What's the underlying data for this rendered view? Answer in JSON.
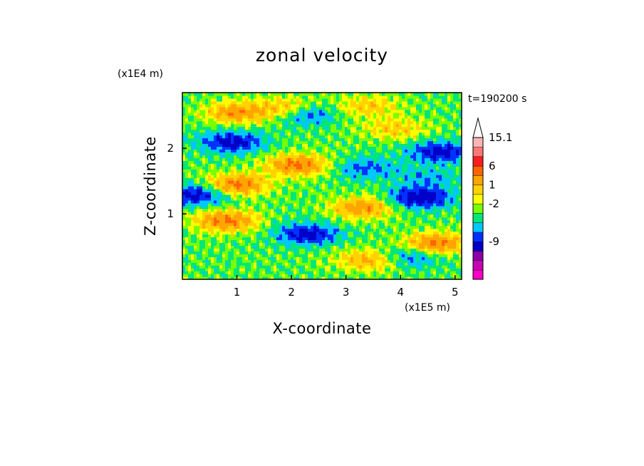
{
  "chart_data": {
    "type": "heatmap",
    "title": "zonal velocity",
    "xlabel": "X-coordinate",
    "ylabel": "Z-coordinate",
    "x_scale_label": "(x1E5 m)",
    "y_scale_label": "(x1E4 m)",
    "time_label": "t=190200 s",
    "xlim": [
      0,
      5.12
    ],
    "ylim": [
      0,
      2.85
    ],
    "x_ticks": [
      {
        "value": 1,
        "label": "1"
      },
      {
        "value": 2,
        "label": "2"
      },
      {
        "value": 3,
        "label": "3"
      },
      {
        "value": 4,
        "label": "4"
      },
      {
        "value": 5,
        "label": "5"
      }
    ],
    "y_ticks": [
      {
        "value": 1,
        "label": "1"
      },
      {
        "value": 2,
        "label": "2"
      }
    ],
    "colorbar": {
      "colors": [
        "#ff00c8",
        "#c800b4",
        "#8c00aa",
        "#0000c8",
        "#0032ff",
        "#00c8ff",
        "#00e678",
        "#78ff00",
        "#ffff00",
        "#ffd200",
        "#ffa500",
        "#ff6400",
        "#ff1e1e",
        "#ff7878",
        "#ffb4b4"
      ],
      "extend_max": true,
      "labels": [
        {
          "level": 4,
          "label": "-9"
        },
        {
          "level": 8,
          "label": "-2"
        },
        {
          "level": 10,
          "label": "1"
        },
        {
          "level": 12,
          "label": "6"
        },
        {
          "level": 15,
          "label": "15.1"
        }
      ]
    },
    "field_features": [
      {
        "x": 0.9,
        "z": 2.1,
        "u": -5
      },
      {
        "x": 1.0,
        "z": 2.55,
        "u": 5
      },
      {
        "x": 2.0,
        "z": 2.6,
        "u": 6
      },
      {
        "x": 2.2,
        "z": 2.55,
        "u": -6
      },
      {
        "x": 3.9,
        "z": 2.3,
        "u": 3
      },
      {
        "x": 3.4,
        "z": 2.65,
        "u": 3
      },
      {
        "x": 2.1,
        "z": 1.75,
        "u": 6
      },
      {
        "x": 1.0,
        "z": 1.45,
        "u": 6
      },
      {
        "x": 0.25,
        "z": 1.3,
        "u": -5
      },
      {
        "x": 3.35,
        "z": 1.7,
        "u": -3
      },
      {
        "x": 4.5,
        "z": 1.55,
        "u": -2
      },
      {
        "x": 4.35,
        "z": 1.25,
        "u": -6
      },
      {
        "x": 4.7,
        "z": 1.95,
        "u": -5
      },
      {
        "x": 3.3,
        "z": 1.1,
        "u": 5
      },
      {
        "x": 2.3,
        "z": 0.7,
        "u": -5
      },
      {
        "x": 4.65,
        "z": 0.55,
        "u": 6
      },
      {
        "x": 4.2,
        "z": 0.35,
        "u": -3
      },
      {
        "x": 3.4,
        "z": 0.3,
        "u": 4
      },
      {
        "x": 0.8,
        "z": 0.9,
        "u": 6
      }
    ]
  }
}
